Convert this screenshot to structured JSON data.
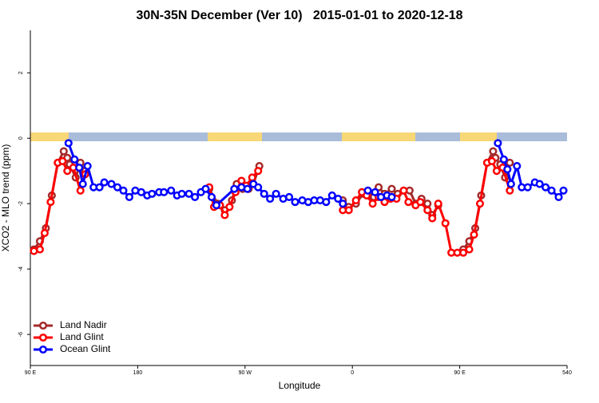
{
  "chart_data": {
    "type": "line",
    "title": "30N-35N December (Ver 10)   2015-01-01 to 2020-12-18",
    "xlabel": "Longitude",
    "ylabel": "XCO2 - MLO trend (ppm)",
    "xlim": [
      90,
      540
    ],
    "ylim": [
      -6.95,
      3.3
    ],
    "xticks": [
      {
        "value": 90,
        "label": "90 E"
      },
      180,
      {
        "value": 270,
        "label": "90 W"
      },
      {
        "value": 360,
        "label": "0"
      },
      {
        "value": 450,
        "label": "90 E"
      },
      540
    ],
    "yticks": [
      -6,
      -4,
      -2,
      0,
      2
    ],
    "legend": "bottom-left",
    "series": [
      {
        "name": "Land Nadir",
        "color": "#a52a2a",
        "x": [
          93,
          98,
          103,
          108,
          113,
          118,
          121,
          123,
          128,
          132,
          136,
          null,
          240,
          247,
          253,
          259,
          263,
          268,
          273,
          277,
          282,
          null,
          352,
          357,
          363,
          369,
          373,
          378,
          382,
          387,
          393,
          398,
          403,
          408,
          413,
          418,
          423,
          427,
          432,
          null,
          453,
          458,
          463,
          468,
          473,
          478,
          480,
          484,
          488,
          492
        ],
        "values": [
          -3.4,
          -3.15,
          -2.75,
          -1.75,
          -0.75,
          -0.4,
          -0.6,
          -0.8,
          -1.2,
          -0.75,
          -1.0,
          null,
          -1.55,
          -2.0,
          -2.2,
          -1.9,
          -1.4,
          -1.55,
          -1.55,
          -1.4,
          -0.85,
          null,
          -1.9,
          -2.1,
          -2.0,
          -1.7,
          -1.75,
          -1.8,
          -1.5,
          -1.7,
          -1.55,
          -1.7,
          -1.6,
          -1.6,
          -2.0,
          -1.85,
          -2.0,
          -2.35,
          -2.05,
          null,
          -3.4,
          -3.15,
          -2.75,
          -1.75,
          -0.75,
          -0.4,
          -0.6,
          -0.8,
          -1.2,
          -0.75
        ]
      },
      {
        "name": "Land Glint",
        "color": "#ff0000",
        "x": [
          93,
          98,
          102,
          107,
          113,
          117,
          121,
          126,
          132,
          136,
          null,
          240,
          244,
          249,
          253,
          257,
          262,
          267,
          271,
          276,
          281,
          null,
          352,
          357,
          363,
          368,
          372,
          377,
          382,
          387,
          392,
          397,
          403,
          407,
          413,
          417,
          423,
          427,
          432,
          438,
          443,
          448,
          453,
          458,
          462,
          467,
          473,
          477,
          481,
          486,
          492
        ],
        "values": [
          -3.45,
          -3.4,
          -2.9,
          -1.95,
          -0.75,
          -0.7,
          -1.0,
          -0.9,
          -1.6,
          -1.1,
          null,
          -1.5,
          -2.1,
          -2.05,
          -2.35,
          -2.1,
          -1.65,
          -1.3,
          -1.45,
          -1.2,
          -1.0,
          null,
          -2.2,
          -2.2,
          -1.9,
          -1.65,
          -1.75,
          -2.0,
          -1.8,
          -1.95,
          -1.85,
          -1.85,
          -1.6,
          -1.95,
          -2.05,
          -1.95,
          -2.2,
          -2.45,
          -2.0,
          -2.6,
          -3.5,
          -3.5,
          -3.5,
          -3.4,
          -2.95,
          -2.0,
          -0.75,
          -0.7,
          -1.0,
          -0.9,
          -1.6
        ]
      },
      {
        "name": "Ocean Glint",
        "color": "#0000ff",
        "x": [
          122,
          127,
          131,
          134,
          138,
          143,
          148,
          152,
          158,
          163,
          168,
          173,
          178,
          183,
          188,
          192,
          198,
          202,
          208,
          213,
          217,
          223,
          228,
          233,
          237,
          242,
          246,
          261,
          267,
          272,
          277,
          281,
          286,
          291,
          296,
          302,
          307,
          312,
          318,
          323,
          328,
          333,
          338,
          343,
          348,
          352,
          null,
          373,
          379,
          384,
          389,
          393,
          null,
          482,
          487,
          490,
          493,
          498,
          502,
          507,
          513,
          517,
          522,
          527,
          533,
          537
        ],
        "values": [
          -0.15,
          -0.65,
          -0.9,
          -1.4,
          -0.85,
          -1.5,
          -1.5,
          -1.35,
          -1.4,
          -1.5,
          -1.6,
          -1.8,
          -1.6,
          -1.65,
          -1.75,
          -1.7,
          -1.65,
          -1.65,
          -1.6,
          -1.75,
          -1.7,
          -1.7,
          -1.8,
          -1.65,
          -1.55,
          -1.8,
          -2.05,
          -1.55,
          -1.5,
          -1.55,
          -1.4,
          -1.5,
          -1.7,
          -1.85,
          -1.7,
          -1.85,
          -1.8,
          -1.95,
          -1.9,
          -1.95,
          -1.9,
          -1.9,
          -1.95,
          -1.75,
          -1.85,
          -2.0,
          null,
          -1.6,
          -1.65,
          -1.8,
          -1.75,
          -1.8,
          null,
          -0.15,
          -0.65,
          -0.95,
          -1.4,
          -0.85,
          -1.5,
          -1.5,
          -1.35,
          -1.4,
          -1.5,
          -1.6,
          -1.8,
          -1.6
        ]
      }
    ]
  }
}
